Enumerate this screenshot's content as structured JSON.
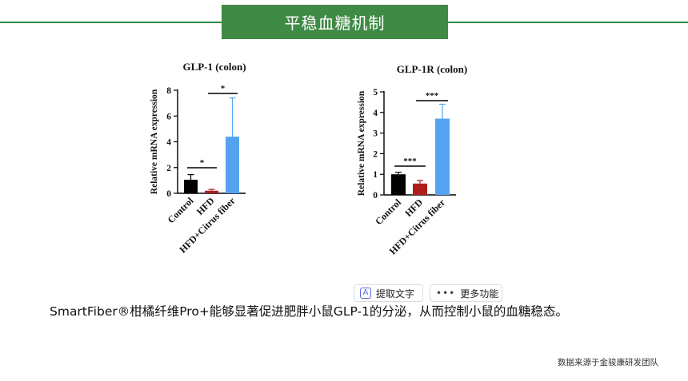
{
  "header": {
    "title": "平稳血糖机制"
  },
  "chart_data": [
    {
      "type": "bar",
      "title": "GLP-1 (colon)",
      "ylabel": "Relative mRNA expression",
      "categories": [
        "Control",
        "HFD",
        "HFD+Citrus fiber"
      ],
      "values": [
        1.05,
        0.2,
        4.4
      ],
      "errors": [
        0.4,
        0.1,
        3.0
      ],
      "ylim": [
        0,
        8
      ],
      "yticks": [
        "0",
        "2",
        "4",
        "6",
        "8"
      ],
      "colors": [
        "#000000",
        "#b01c1c",
        "#55a3f0"
      ],
      "significance": [
        {
          "pair": [
            0,
            1
          ],
          "label": "*"
        },
        {
          "pair": [
            1,
            2
          ],
          "label": "*"
        }
      ]
    },
    {
      "type": "bar",
      "title": "GLP-1R (colon)",
      "ylabel": "Relative mRNA expression",
      "categories": [
        "Control",
        "HFD",
        "HFD+Citrus fiber"
      ],
      "values": [
        1.0,
        0.55,
        3.7
      ],
      "errors": [
        0.1,
        0.15,
        0.7
      ],
      "ylim": [
        0,
        5
      ],
      "yticks": [
        "0",
        "1",
        "2",
        "3",
        "4",
        "5"
      ],
      "colors": [
        "#000000",
        "#b01c1c",
        "#55a3f0"
      ],
      "significance": [
        {
          "pair": [
            0,
            1
          ],
          "label": "***"
        },
        {
          "pair": [
            1,
            2
          ],
          "label": "***"
        }
      ]
    }
  ],
  "toolbar": {
    "extract_text": "提取文字",
    "extract_icon": "text-extract-icon",
    "more_functions": "更多功能",
    "more_icon": "more-dots-icon"
  },
  "caption": "SmartFiber®柑橘纤维Pro+能够显著促进肥胖小鼠GLP-1的分泌，从而控制小鼠的血糖稳态。",
  "source": "数据来源于金骏康研发团队"
}
